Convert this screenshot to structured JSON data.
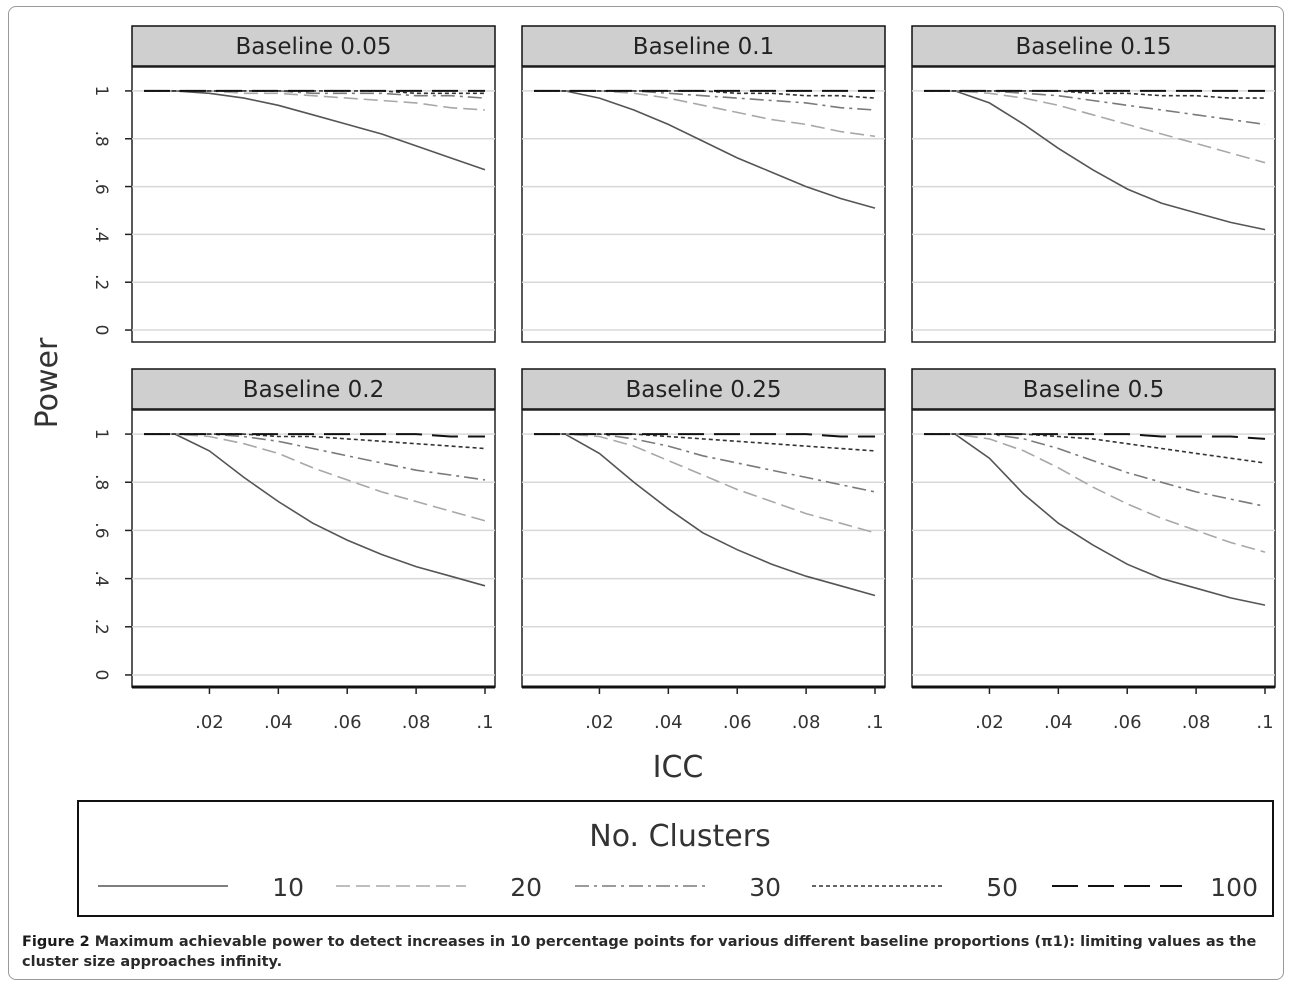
{
  "caption": {
    "label": "Figure 2",
    "text": "Maximum achievable power to detect increases in 10 percentage points for various different baseline proportions (π1): limiting values as the cluster size approaches infinity."
  },
  "chart_data": {
    "type": "line",
    "xlabel": "ICC",
    "ylabel": "Power",
    "x_tick_labels": [
      ".02",
      ".04",
      ".06",
      ".08",
      ".1"
    ],
    "x_ticks": [
      0.02,
      0.04,
      0.06,
      0.08,
      0.1
    ],
    "y_tick_labels": [
      "0",
      ".2",
      ".4",
      ".6",
      ".8",
      "1"
    ],
    "y_ticks": [
      0,
      0.2,
      0.4,
      0.6,
      0.8,
      1.0
    ],
    "xlim": [
      0.001,
      0.1
    ],
    "ylim": [
      -0.05,
      1.1
    ],
    "legend": {
      "title": "No. Clusters",
      "placement": "bottom",
      "entries": [
        "10",
        "20",
        "30",
        "50",
        "100"
      ]
    },
    "x": [
      0.001,
      0.01,
      0.02,
      0.03,
      0.04,
      0.05,
      0.06,
      0.07,
      0.08,
      0.09,
      0.1
    ],
    "panels": [
      {
        "title": "Baseline 0.05",
        "series": [
          {
            "name": "10",
            "values": [
              1.0,
              1.0,
              0.99,
              0.97,
              0.94,
              0.9,
              0.86,
              0.82,
              0.77,
              0.72,
              0.67
            ]
          },
          {
            "name": "20",
            "values": [
              1.0,
              1.0,
              1.0,
              0.99,
              0.99,
              0.98,
              0.97,
              0.96,
              0.95,
              0.93,
              0.92
            ]
          },
          {
            "name": "30",
            "values": [
              1.0,
              1.0,
              1.0,
              1.0,
              1.0,
              0.99,
              0.99,
              0.99,
              0.98,
              0.98,
              0.97
            ]
          },
          {
            "name": "50",
            "values": [
              1.0,
              1.0,
              1.0,
              1.0,
              1.0,
              1.0,
              1.0,
              1.0,
              0.99,
              0.99,
              0.99
            ]
          },
          {
            "name": "100",
            "values": [
              1.0,
              1.0,
              1.0,
              1.0,
              1.0,
              1.0,
              1.0,
              1.0,
              1.0,
              1.0,
              1.0
            ]
          }
        ]
      },
      {
        "title": "Baseline 0.1",
        "series": [
          {
            "name": "10",
            "values": [
              1.0,
              1.0,
              0.97,
              0.92,
              0.86,
              0.79,
              0.72,
              0.66,
              0.6,
              0.55,
              0.51
            ]
          },
          {
            "name": "20",
            "values": [
              1.0,
              1.0,
              1.0,
              0.99,
              0.97,
              0.94,
              0.91,
              0.88,
              0.86,
              0.83,
              0.81
            ]
          },
          {
            "name": "30",
            "values": [
              1.0,
              1.0,
              1.0,
              1.0,
              0.99,
              0.98,
              0.97,
              0.96,
              0.95,
              0.93,
              0.92
            ]
          },
          {
            "name": "50",
            "values": [
              1.0,
              1.0,
              1.0,
              1.0,
              1.0,
              1.0,
              0.99,
              0.99,
              0.98,
              0.98,
              0.97
            ]
          },
          {
            "name": "100",
            "values": [
              1.0,
              1.0,
              1.0,
              1.0,
              1.0,
              1.0,
              1.0,
              1.0,
              1.0,
              1.0,
              1.0
            ]
          }
        ]
      },
      {
        "title": "Baseline 0.15",
        "series": [
          {
            "name": "10",
            "values": [
              1.0,
              1.0,
              0.95,
              0.86,
              0.76,
              0.67,
              0.59,
              0.53,
              0.49,
              0.45,
              0.42
            ]
          },
          {
            "name": "20",
            "values": [
              1.0,
              1.0,
              0.99,
              0.97,
              0.94,
              0.9,
              0.86,
              0.82,
              0.78,
              0.74,
              0.7
            ]
          },
          {
            "name": "30",
            "values": [
              1.0,
              1.0,
              1.0,
              0.99,
              0.98,
              0.96,
              0.94,
              0.92,
              0.9,
              0.88,
              0.86
            ]
          },
          {
            "name": "50",
            "values": [
              1.0,
              1.0,
              1.0,
              1.0,
              1.0,
              0.99,
              0.99,
              0.98,
              0.98,
              0.97,
              0.97
            ]
          },
          {
            "name": "100",
            "values": [
              1.0,
              1.0,
              1.0,
              1.0,
              1.0,
              1.0,
              1.0,
              1.0,
              1.0,
              1.0,
              1.0
            ]
          }
        ]
      },
      {
        "title": "Baseline 0.2",
        "series": [
          {
            "name": "10",
            "values": [
              1.0,
              1.0,
              0.93,
              0.82,
              0.72,
              0.63,
              0.56,
              0.5,
              0.45,
              0.41,
              0.37
            ]
          },
          {
            "name": "20",
            "values": [
              1.0,
              1.0,
              0.99,
              0.96,
              0.92,
              0.86,
              0.81,
              0.76,
              0.72,
              0.68,
              0.64
            ]
          },
          {
            "name": "30",
            "values": [
              1.0,
              1.0,
              1.0,
              0.99,
              0.97,
              0.94,
              0.91,
              0.88,
              0.85,
              0.83,
              0.81
            ]
          },
          {
            "name": "50",
            "values": [
              1.0,
              1.0,
              1.0,
              1.0,
              0.99,
              0.99,
              0.98,
              0.97,
              0.96,
              0.95,
              0.94
            ]
          },
          {
            "name": "100",
            "values": [
              1.0,
              1.0,
              1.0,
              1.0,
              1.0,
              1.0,
              1.0,
              1.0,
              1.0,
              0.99,
              0.99
            ]
          }
        ]
      },
      {
        "title": "Baseline 0.25",
        "series": [
          {
            "name": "10",
            "values": [
              1.0,
              1.0,
              0.92,
              0.8,
              0.69,
              0.59,
              0.52,
              0.46,
              0.41,
              0.37,
              0.33
            ]
          },
          {
            "name": "20",
            "values": [
              1.0,
              1.0,
              0.99,
              0.95,
              0.89,
              0.83,
              0.77,
              0.72,
              0.67,
              0.63,
              0.59
            ]
          },
          {
            "name": "30",
            "values": [
              1.0,
              1.0,
              1.0,
              0.98,
              0.95,
              0.91,
              0.88,
              0.85,
              0.82,
              0.79,
              0.76
            ]
          },
          {
            "name": "50",
            "values": [
              1.0,
              1.0,
              1.0,
              1.0,
              0.99,
              0.98,
              0.97,
              0.96,
              0.95,
              0.94,
              0.93
            ]
          },
          {
            "name": "100",
            "values": [
              1.0,
              1.0,
              1.0,
              1.0,
              1.0,
              1.0,
              1.0,
              1.0,
              1.0,
              0.99,
              0.99
            ]
          }
        ]
      },
      {
        "title": "Baseline 0.5",
        "series": [
          {
            "name": "10",
            "values": [
              1.0,
              1.0,
              0.9,
              0.75,
              0.63,
              0.54,
              0.46,
              0.4,
              0.36,
              0.32,
              0.29
            ]
          },
          {
            "name": "20",
            "values": [
              1.0,
              1.0,
              0.98,
              0.93,
              0.86,
              0.78,
              0.71,
              0.65,
              0.6,
              0.55,
              0.51
            ]
          },
          {
            "name": "30",
            "values": [
              1.0,
              1.0,
              1.0,
              0.98,
              0.94,
              0.89,
              0.84,
              0.8,
              0.76,
              0.73,
              0.7
            ]
          },
          {
            "name": "50",
            "values": [
              1.0,
              1.0,
              1.0,
              1.0,
              0.99,
              0.98,
              0.96,
              0.94,
              0.92,
              0.9,
              0.88
            ]
          },
          {
            "name": "100",
            "values": [
              1.0,
              1.0,
              1.0,
              1.0,
              1.0,
              1.0,
              1.0,
              0.99,
              0.99,
              0.99,
              0.98
            ]
          }
        ]
      }
    ]
  }
}
